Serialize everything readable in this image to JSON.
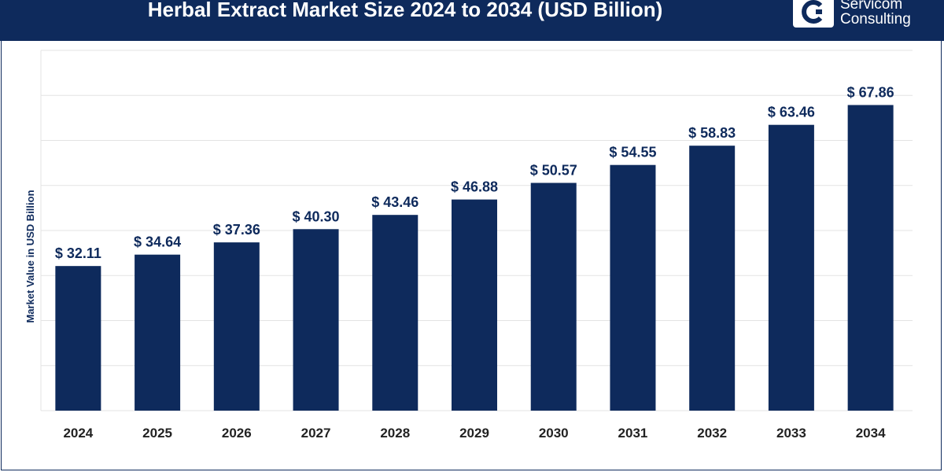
{
  "header": {
    "title": "Herbal Extract Market Size 2024 to 2034 (USD Billion)",
    "logo_line1": "Servicom",
    "logo_line2": "Consulting",
    "logo_icon": "c-mark-icon"
  },
  "colors": {
    "header_bg": "#0e2a5c",
    "bar": "#0e2a5c",
    "grid": "#e3e3e3"
  },
  "chart_data": {
    "type": "bar",
    "title": "Herbal Extract Market Size 2024 to 2034 (USD Billion)",
    "xlabel": "",
    "ylabel": "Market Value in USD Billion",
    "categories": [
      "2024",
      "2025",
      "2026",
      "2027",
      "2028",
      "2029",
      "2030",
      "2031",
      "2032",
      "2033",
      "2034"
    ],
    "values": [
      32.11,
      34.64,
      37.36,
      40.3,
      43.46,
      46.88,
      50.57,
      54.55,
      58.83,
      63.46,
      67.86
    ],
    "value_labels": [
      "$ 32.11",
      "$ 34.64",
      "$ 37.36",
      "$ 40.30",
      "$ 43.46",
      "$ 46.88",
      "$ 50.57",
      "$ 54.55",
      "$ 58.83",
      "$ 63.46",
      "$ 67.86"
    ],
    "ylim": [
      0,
      80
    ],
    "grid": true,
    "legend": "none"
  }
}
